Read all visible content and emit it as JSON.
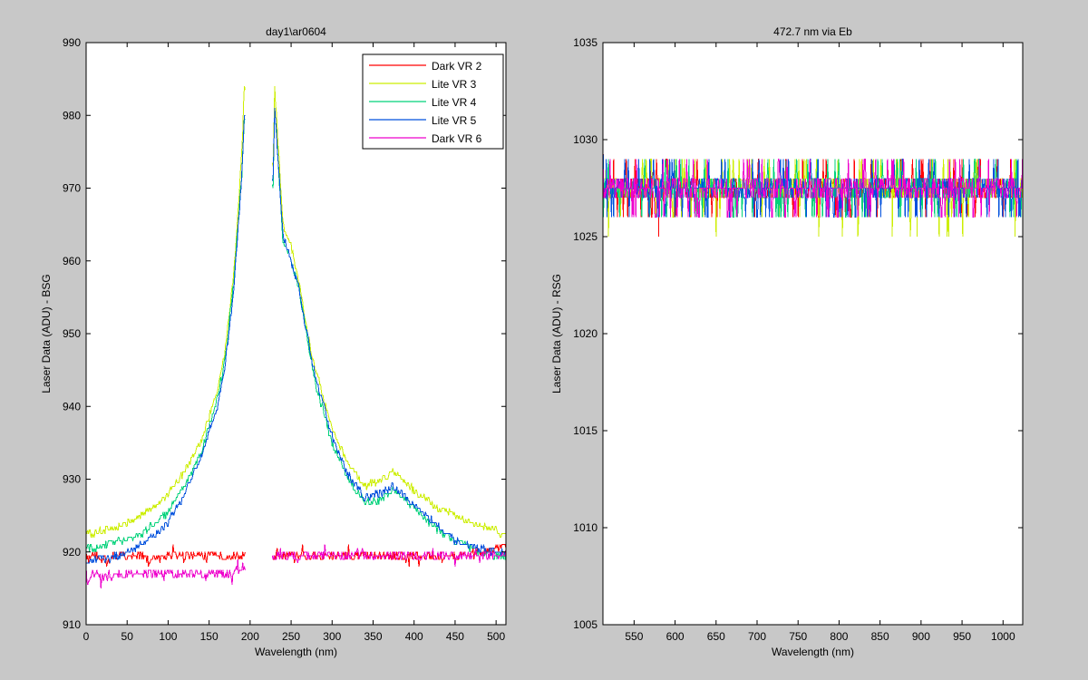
{
  "figure": {
    "background": "#c8c8c8"
  },
  "chart_data": [
    {
      "type": "line",
      "title": "day1\\ar0604",
      "xlabel": "Wavelength (nm)",
      "ylabel": "Laser Data (ADU) - BSG",
      "xlim": [
        0,
        512
      ],
      "ylim": [
        910,
        990
      ],
      "xticks": [
        0,
        50,
        100,
        150,
        200,
        250,
        300,
        350,
        400,
        450,
        500
      ],
      "yticks": [
        910,
        920,
        930,
        940,
        950,
        960,
        970,
        980,
        990
      ],
      "legend_position": "top-right",
      "series": [
        {
          "name": "Dark VR 2",
          "color": "#ff0000",
          "x": [
            0,
            5,
            10,
            20,
            40,
            60,
            80,
            100,
            120,
            140,
            160,
            180,
            200,
            220,
            250,
            300,
            350,
            400,
            450,
            480,
            500,
            512
          ],
          "y": [
            919.5,
            919,
            919.5,
            919,
            919.5,
            919.5,
            919,
            919.5,
            919.5,
            919.5,
            919.5,
            919.5,
            919.5,
            919.5,
            919.5,
            919.5,
            919.5,
            919.5,
            919.5,
            920,
            920.5,
            920.5
          ]
        },
        {
          "name": "Lite VR 3",
          "color": "#ccee00",
          "x": [
            0,
            10,
            20,
            40,
            60,
            80,
            100,
            120,
            140,
            160,
            170,
            180,
            190,
            193,
            228,
            230,
            240,
            250,
            260,
            270,
            280,
            300,
            320,
            340,
            360,
            375,
            390,
            410,
            430,
            450,
            480,
            500,
            505
          ],
          "y": [
            922.5,
            922.5,
            923,
            923.5,
            924.5,
            926,
            928,
            931,
            935,
            942,
            948,
            958,
            975,
            984,
            973,
            984,
            965,
            962,
            957,
            950,
            945,
            937,
            932,
            929,
            930,
            931,
            929.5,
            927.5,
            926,
            925,
            923.5,
            923,
            922.5
          ]
        },
        {
          "name": "Lite VR 4",
          "color": "#00d27a",
          "x": [
            0,
            10,
            20,
            40,
            60,
            80,
            100,
            120,
            140,
            160,
            170,
            180,
            190,
            193,
            228,
            230,
            240,
            250,
            260,
            270,
            280,
            300,
            320,
            340,
            360,
            375,
            390,
            410,
            430,
            450,
            480,
            500,
            512
          ],
          "y": [
            920.5,
            920.5,
            921,
            921.5,
            922,
            923.5,
            925.5,
            929,
            933.5,
            941,
            947,
            957,
            972,
            980,
            970,
            981,
            963,
            960,
            956,
            949,
            943,
            935,
            930,
            927,
            927,
            928.5,
            927,
            925,
            923,
            921.5,
            920,
            919.5,
            919.5
          ]
        },
        {
          "name": "Lite VR 5",
          "color": "#0050dd",
          "x": [
            0,
            10,
            20,
            40,
            60,
            80,
            100,
            120,
            140,
            160,
            170,
            180,
            190,
            193,
            228,
            230,
            240,
            250,
            260,
            270,
            280,
            300,
            320,
            340,
            360,
            375,
            390,
            410,
            430,
            450,
            480,
            500,
            512
          ],
          "y": [
            918.5,
            919,
            919,
            919.5,
            920.5,
            922,
            924,
            928,
            933,
            940,
            946,
            956,
            972,
            980,
            971,
            981,
            963.5,
            960,
            956,
            949.5,
            944,
            936,
            930.5,
            927.5,
            928,
            929,
            927.5,
            925.5,
            923.5,
            921.5,
            920.5,
            920,
            920
          ]
        },
        {
          "name": "Dark VR 6",
          "color": "#ee00cc",
          "x": [
            0,
            2,
            5,
            10,
            20,
            40,
            60,
            80,
            100,
            120,
            140,
            160,
            170,
            180,
            190,
            200,
            210,
            220,
            240,
            260,
            280,
            300,
            350,
            400,
            450,
            500,
            512
          ],
          "y": [
            918,
            915,
            917,
            917,
            916.5,
            917,
            917,
            917,
            917,
            917,
            917,
            917,
            917,
            917,
            918,
            918.5,
            919,
            919.5,
            919.5,
            919.5,
            919.5,
            919.5,
            919.5,
            919.5,
            919.5,
            919.5,
            919.5
          ]
        }
      ]
    },
    {
      "type": "line",
      "title": "472.7 nm via Eb",
      "xlabel": "Wavelength (nm)",
      "ylabel": "Laser Data (ADU) - RSG",
      "xlim": [
        512,
        1024
      ],
      "ylim": [
        1005,
        1035
      ],
      "xticks": [
        550,
        600,
        650,
        700,
        750,
        800,
        850,
        900,
        950,
        1000
      ],
      "yticks": [
        1005,
        1010,
        1015,
        1020,
        1025,
        1030,
        1035
      ],
      "note": "noise band between 1026 and 1029 ADU, initial spike to 1031.5",
      "series": [
        {
          "name": "Dark VR 2",
          "color": "#ff0000",
          "x": [
            512,
            513,
            520,
            580,
            600,
            700,
            800,
            900,
            1024
          ],
          "y": [
            1031,
            1027.5,
            1027.5,
            1025,
            1027.5,
            1027.5,
            1027.5,
            1027.5,
            1027.5
          ]
        },
        {
          "name": "Lite VR 3",
          "color": "#ccee00",
          "x": [
            512,
            513,
            650,
            700,
            865,
            895,
            1024
          ],
          "y": [
            1030,
            1027,
            1025,
            1027,
            1025,
            1025,
            1027
          ]
        },
        {
          "name": "Lite VR 4",
          "color": "#00d27a",
          "x": [
            512,
            513,
            600,
            700,
            800,
            900,
            1024
          ],
          "y": [
            1030.5,
            1027.5,
            1027.5,
            1027.5,
            1027.5,
            1027.5,
            1027.5
          ]
        },
        {
          "name": "Lite VR 5",
          "color": "#0050dd",
          "x": [
            512,
            513,
            600,
            700,
            800,
            900,
            1024
          ],
          "y": [
            1031.5,
            1027.5,
            1027.5,
            1027.5,
            1027.5,
            1027.5,
            1027.5
          ]
        },
        {
          "name": "Dark VR 6",
          "color": "#ee00cc",
          "x": [
            512,
            513,
            600,
            700,
            800,
            900,
            1024
          ],
          "y": [
            1030,
            1027.5,
            1027.5,
            1027.5,
            1027.5,
            1027.5,
            1027.5
          ]
        }
      ]
    }
  ]
}
